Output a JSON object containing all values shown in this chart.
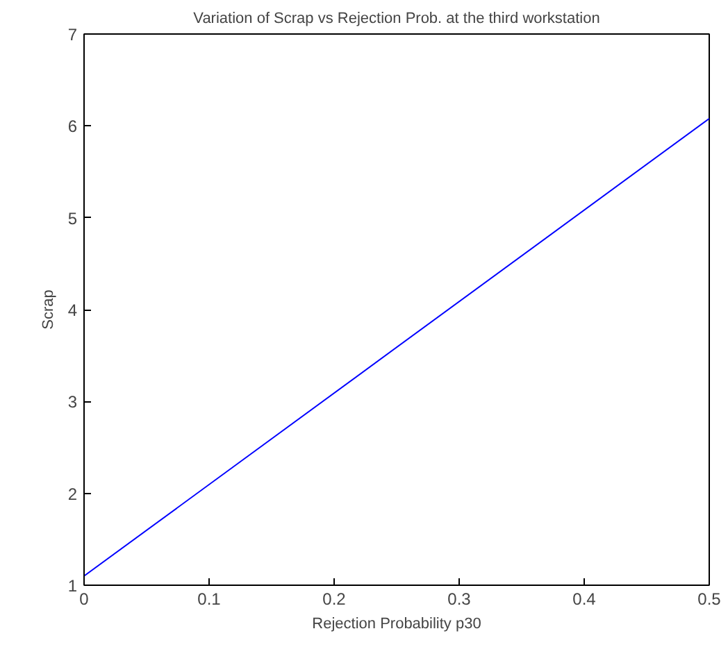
{
  "chart_data": {
    "type": "line",
    "title": "Variation of Scrap vs Rejection Prob. at the third workstation",
    "xlabel": "Rejection Probability p30",
    "ylabel": "Scrap",
    "x": [
      0,
      0.5
    ],
    "series": [
      {
        "color": "#0000ff",
        "values": [
          1.1,
          6.08
        ]
      }
    ],
    "xlim": [
      0,
      0.5
    ],
    "ylim": [
      1,
      7
    ],
    "xticks": [
      0,
      0.1,
      0.2,
      0.3,
      0.4,
      0.5
    ],
    "yticks": [
      1,
      2,
      3,
      4,
      5,
      6,
      7
    ],
    "grid": false,
    "marker": "none",
    "line_style": "solid"
  }
}
